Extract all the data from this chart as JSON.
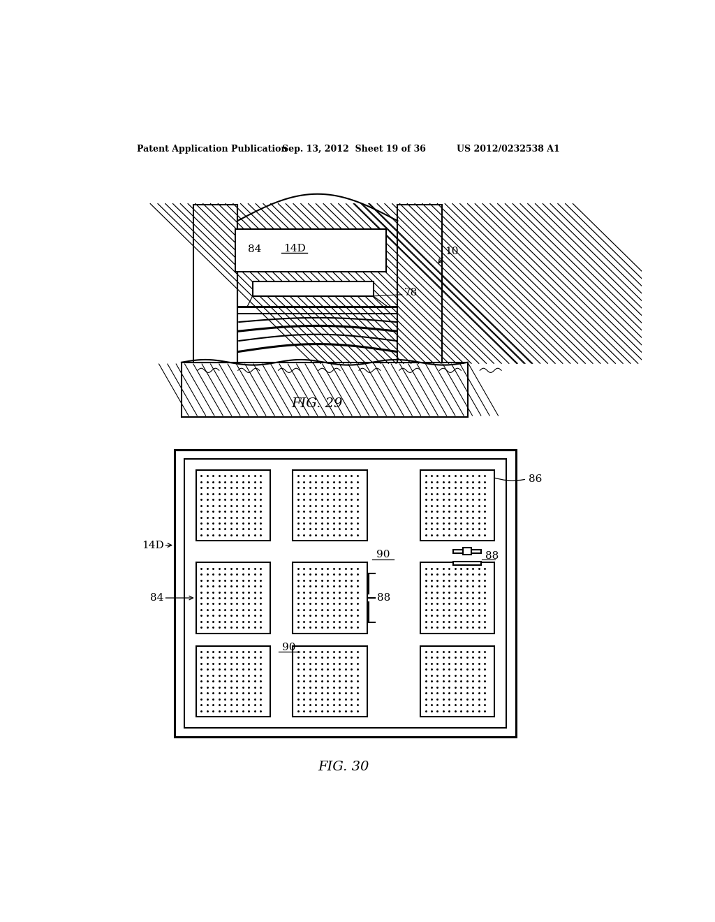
{
  "header_left": "Patent Application Publication",
  "header_mid": "Sep. 13, 2012  Sheet 19 of 36",
  "header_right": "US 2012/0232538 A1",
  "fig29_label": "FIG. 29",
  "fig30_label": "FIG. 30",
  "label_10": "10",
  "label_84_fig29": "84",
  "label_14D_fig29": "14D",
  "label_78": "78",
  "label_14D_fig30": "14D",
  "label_84_fig30": "84",
  "label_86": "86",
  "label_88a": "88",
  "label_88b": "88",
  "label_90a": "90",
  "label_90b": "90",
  "bg_color": "#ffffff",
  "line_color": "#000000"
}
